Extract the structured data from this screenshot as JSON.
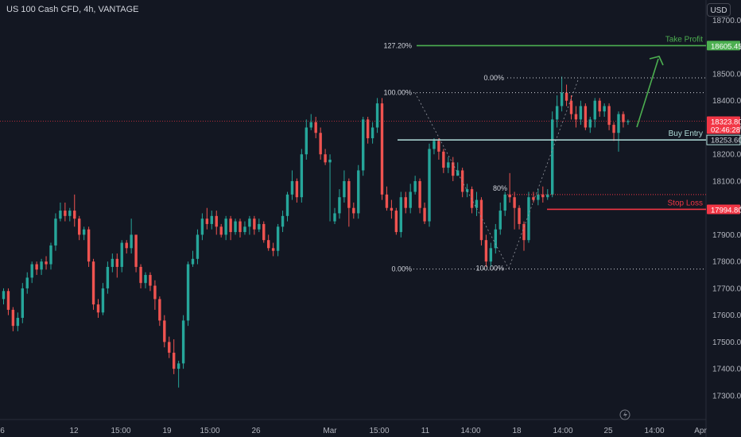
{
  "header": {
    "title": "US 100 Cash CFD, 4h, VANTAGE",
    "currency_button": "USD"
  },
  "colors": {
    "background": "#131722",
    "up": "#26a69a",
    "down": "#ef5350",
    "take_profit": "#4caf50",
    "stop_loss": "#f23645",
    "buy_entry": "#b2dfdb",
    "current_price": "#f23645",
    "fib_line": "#d1d4dc"
  },
  "chart_data": {
    "type": "candlestick",
    "ylim": [
      17200,
      18750
    ],
    "y_ticks": [
      17300,
      17400,
      17500,
      17600,
      17700,
      17800,
      17900,
      18000,
      18100,
      18200,
      18300,
      18400,
      18500,
      18600,
      18700
    ],
    "y_tick_labels": [
      "17300.00",
      "17400.00",
      "17500.00",
      "17600.00",
      "17700.00",
      "17800.00",
      "17900.00",
      "18000.00",
      "18100.00",
      "18200.00",
      "18300.00",
      "18400.00",
      "18500.00",
      "18600.00",
      "18700.00"
    ],
    "x_tick_labels": [
      "6",
      "12",
      "15:00",
      "19",
      "15:00",
      "26",
      "Mar",
      "15:00",
      "11",
      "14:00",
      "18",
      "14:00",
      "25",
      "14:00",
      "Apr"
    ],
    "candles": [
      [
        17660,
        17690,
        17640,
        17700
      ],
      [
        17690,
        17620,
        17600,
        17700
      ],
      [
        17620,
        17560,
        17540,
        17630
      ],
      [
        17560,
        17590,
        17540,
        17610
      ],
      [
        17590,
        17700,
        17570,
        17720
      ],
      [
        17700,
        17740,
        17680,
        17760
      ],
      [
        17740,
        17790,
        17720,
        17800
      ],
      [
        17790,
        17770,
        17750,
        17800
      ],
      [
        17770,
        17800,
        17750,
        17810
      ],
      [
        17800,
        17790,
        17770,
        17820
      ],
      [
        17790,
        17860,
        17770,
        17870
      ],
      [
        17860,
        17960,
        17840,
        17980
      ],
      [
        17960,
        17990,
        17950,
        18020
      ],
      [
        17990,
        17970,
        17950,
        18020
      ],
      [
        17970,
        17990,
        17950,
        18000
      ],
      [
        17990,
        17960,
        17930,
        18050
      ],
      [
        17960,
        17900,
        17880,
        17970
      ],
      [
        17900,
        17920,
        17880,
        17930
      ],
      [
        17920,
        17800,
        17780,
        17930
      ],
      [
        17800,
        17640,
        17620,
        17810
      ],
      [
        17640,
        17610,
        17590,
        17660
      ],
      [
        17610,
        17700,
        17600,
        17720
      ],
      [
        17700,
        17780,
        17680,
        17800
      ],
      [
        17780,
        17810,
        17760,
        17830
      ],
      [
        17810,
        17780,
        17740,
        17830
      ],
      [
        17780,
        17870,
        17760,
        17880
      ],
      [
        17870,
        17850,
        17830,
        17880
      ],
      [
        17850,
        17900,
        17830,
        17960
      ],
      [
        17900,
        17780,
        17760,
        17900
      ],
      [
        17780,
        17720,
        17700,
        17790
      ],
      [
        17720,
        17750,
        17700,
        17760
      ],
      [
        17750,
        17710,
        17690,
        17760
      ],
      [
        17710,
        17660,
        17620,
        17730
      ],
      [
        17660,
        17580,
        17560,
        17670
      ],
      [
        17580,
        17500,
        17480,
        17600
      ],
      [
        17500,
        17460,
        17440,
        17520
      ],
      [
        17460,
        17400,
        17380,
        17510
      ],
      [
        17400,
        17420,
        17330,
        17430
      ],
      [
        17420,
        17580,
        17400,
        17600
      ],
      [
        17580,
        17790,
        17560,
        17800
      ],
      [
        17790,
        17810,
        17780,
        17840
      ],
      [
        17810,
        17900,
        17790,
        17920
      ],
      [
        17900,
        17960,
        17880,
        17980
      ],
      [
        17960,
        17940,
        17920,
        18000
      ],
      [
        17940,
        17970,
        17920,
        17990
      ],
      [
        17970,
        17930,
        17900,
        17990
      ],
      [
        17930,
        17900,
        17890,
        17940
      ],
      [
        17900,
        17960,
        17880,
        17970
      ],
      [
        17960,
        17910,
        17880,
        17970
      ],
      [
        17910,
        17950,
        17900,
        17960
      ],
      [
        17950,
        17910,
        17890,
        17960
      ],
      [
        17910,
        17930,
        17900,
        17950
      ],
      [
        17930,
        17960,
        17900,
        17970
      ],
      [
        17960,
        17920,
        17900,
        17970
      ],
      [
        17920,
        17940,
        17910,
        17960
      ],
      [
        17940,
        17880,
        17870,
        17950
      ],
      [
        17880,
        17850,
        17840,
        17900
      ],
      [
        17850,
        17840,
        17820,
        17870
      ],
      [
        17840,
        17930,
        17820,
        17940
      ],
      [
        17930,
        17970,
        17910,
        17990
      ],
      [
        17970,
        18050,
        17950,
        18060
      ],
      [
        18050,
        18100,
        18030,
        18140
      ],
      [
        18100,
        18040,
        18020,
        18110
      ],
      [
        18040,
        18200,
        18020,
        18220
      ],
      [
        18200,
        18300,
        18180,
        18330
      ],
      [
        18300,
        18320,
        18290,
        18350
      ],
      [
        18320,
        18280,
        18260,
        18340
      ],
      [
        18280,
        18200,
        18180,
        18300
      ],
      [
        18200,
        18170,
        18160,
        18220
      ],
      [
        18170,
        18180,
        17950,
        18200
      ],
      [
        17950,
        17980,
        17940,
        18000
      ],
      [
        17980,
        18040,
        17960,
        18070
      ],
      [
        18040,
        18100,
        18020,
        18140
      ],
      [
        18100,
        18000,
        17930,
        18110
      ],
      [
        18000,
        17980,
        17960,
        18020
      ],
      [
        17980,
        18140,
        17960,
        18160
      ],
      [
        18140,
        18330,
        18120,
        18340
      ],
      [
        18330,
        18260,
        18240,
        18340
      ],
      [
        18260,
        18300,
        18240,
        18320
      ],
      [
        18300,
        18390,
        18280,
        18410
      ],
      [
        18390,
        18050,
        18030,
        18410
      ],
      [
        18050,
        18000,
        17990,
        18080
      ],
      [
        18000,
        17990,
        17960,
        18030
      ],
      [
        17990,
        17910,
        17900,
        18000
      ],
      [
        17910,
        18040,
        17890,
        18060
      ],
      [
        18040,
        18000,
        17980,
        18060
      ],
      [
        18000,
        18060,
        17980,
        18090
      ],
      [
        18060,
        18100,
        18050,
        18120
      ],
      [
        18100,
        18000,
        17980,
        18110
      ],
      [
        18000,
        17950,
        17940,
        18020
      ],
      [
        17950,
        18220,
        17930,
        18240
      ],
      [
        18220,
        18250,
        18200,
        18260
      ],
      [
        18250,
        18210,
        18180,
        18260
      ],
      [
        18210,
        18150,
        18130,
        18220
      ],
      [
        18150,
        18170,
        18130,
        18190
      ],
      [
        18170,
        18120,
        18100,
        18190
      ],
      [
        18120,
        18140,
        18120,
        18170
      ],
      [
        18140,
        18060,
        18040,
        18150
      ],
      [
        18060,
        18070,
        18040,
        18090
      ],
      [
        18070,
        18000,
        17980,
        18080
      ],
      [
        18000,
        18030,
        17970,
        18060
      ],
      [
        18030,
        17880,
        17860,
        18040
      ],
      [
        17880,
        17800,
        17780,
        17900
      ],
      [
        17800,
        17850,
        17780,
        17870
      ],
      [
        17850,
        17920,
        17830,
        17940
      ],
      [
        17920,
        17990,
        17900,
        18020
      ],
      [
        17990,
        18050,
        17970,
        18060
      ],
      [
        18050,
        18040,
        18020,
        18130
      ],
      [
        18040,
        18000,
        17920,
        18060
      ],
      [
        18000,
        17940,
        17920,
        18010
      ],
      [
        17940,
        17880,
        17840,
        17950
      ],
      [
        17880,
        18040,
        17870,
        18060
      ],
      [
        18040,
        18030,
        18020,
        18060
      ],
      [
        18030,
        18050,
        18010,
        18070
      ],
      [
        18050,
        18040,
        18020,
        18080
      ],
      [
        18040,
        18050,
        18030,
        18070
      ],
      [
        18050,
        18330,
        18040,
        18360
      ],
      [
        18330,
        18380,
        18300,
        18420
      ],
      [
        18380,
        18430,
        18360,
        18490
      ],
      [
        18430,
        18400,
        18380,
        18460
      ],
      [
        18400,
        18350,
        18330,
        18420
      ],
      [
        18350,
        18330,
        18300,
        18380
      ],
      [
        18330,
        18380,
        18310,
        18400
      ],
      [
        18380,
        18300,
        18290,
        18390
      ],
      [
        18300,
        18330,
        18280,
        18340
      ],
      [
        18330,
        18400,
        18300,
        18410
      ],
      [
        18400,
        18360,
        18340,
        18410
      ],
      [
        18360,
        18380,
        18340,
        18390
      ],
      [
        18380,
        18310,
        18290,
        18390
      ],
      [
        18310,
        18280,
        18250,
        18320
      ],
      [
        18280,
        18350,
        18210,
        18360
      ],
      [
        18350,
        18320,
        18300,
        18360
      ],
      [
        18320,
        18324,
        18310,
        18330
      ]
    ],
    "levels": {
      "take_profit": {
        "label": "Take Profit",
        "price": 18605.45,
        "price_label": "18605.45"
      },
      "buy_entry": {
        "label": "Buy Entry",
        "price": 18253.6,
        "price_label": "18253.60"
      },
      "stop_loss": {
        "label": "Stop Loss",
        "price": 17994.8,
        "price_label": "17994.80"
      },
      "current": {
        "price": 18323.8,
        "price_label": "18323.80",
        "countdown": "02:46:28"
      }
    },
    "fibonacci": [
      {
        "label": "127.20%",
        "price": 18605.45
      },
      {
        "label": "100.00%",
        "price": 18430
      },
      {
        "label": "0.00%",
        "price": 17772
      },
      {
        "label": "0.00%",
        "price": 18485
      },
      {
        "label": "100.00%",
        "price": 17775
      },
      {
        "label": "80%",
        "price": 18050
      }
    ]
  }
}
